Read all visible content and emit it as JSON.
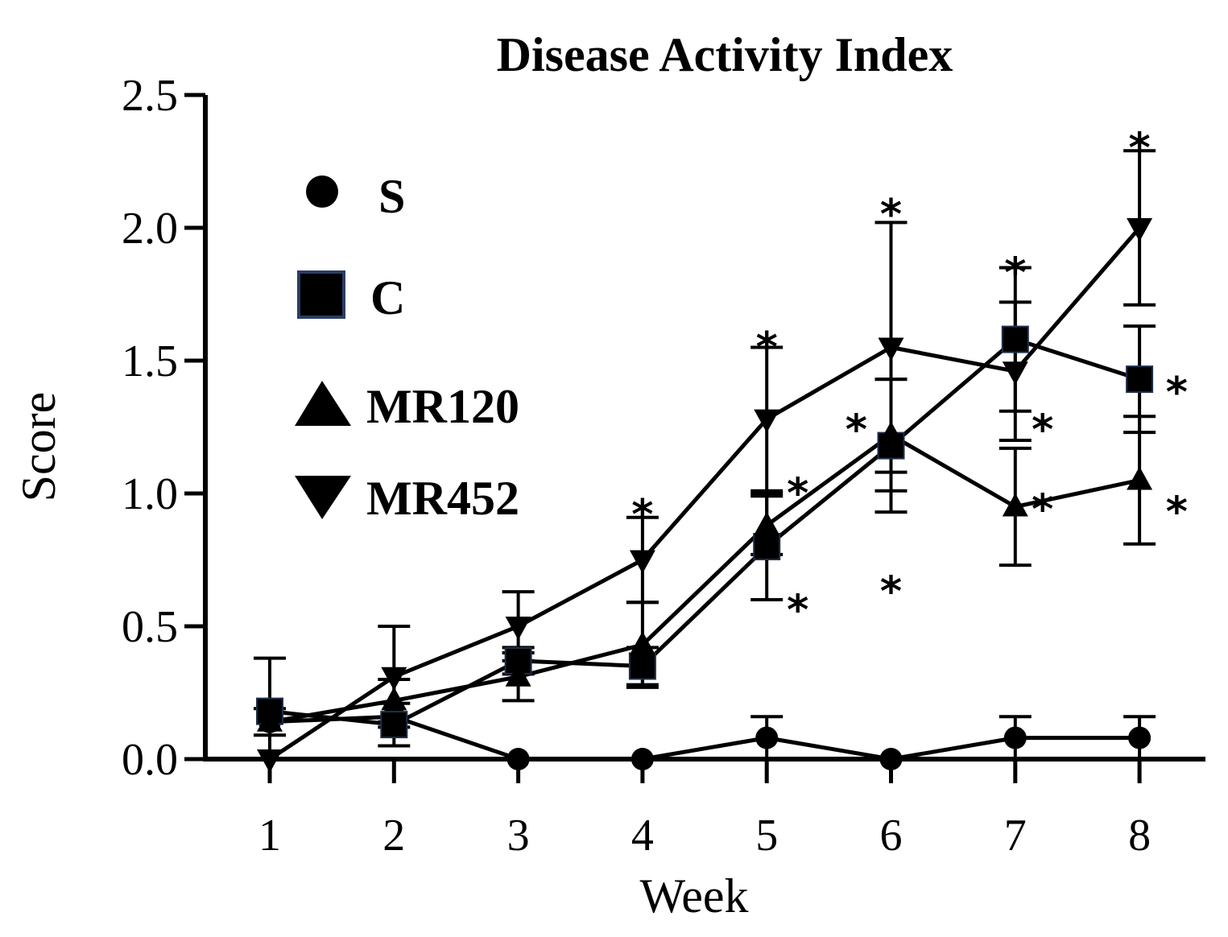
{
  "chart_data": {
    "type": "line",
    "title": "Disease Activity Index",
    "xlabel": "Week",
    "ylabel": "Score",
    "x": [
      1,
      2,
      3,
      4,
      5,
      6,
      7,
      8
    ],
    "xlim": [
      0.3,
      8.5
    ],
    "ylim": [
      0,
      2.5
    ],
    "yticks": [
      "0.0",
      "0.5",
      "1.0",
      "1.5",
      "2.0",
      "2.5"
    ],
    "xticks": [
      "1",
      "2",
      "3",
      "4",
      "5",
      "6",
      "7",
      "8"
    ],
    "legend_position": "top-left",
    "series": [
      {
        "name": "S",
        "marker": "circle",
        "values": [
          0.14,
          0.16,
          0.0,
          0.0,
          0.08,
          0.0,
          0.08,
          0.08
        ],
        "error": [
          0,
          0,
          0,
          0,
          0.08,
          0,
          0.08,
          0.08
        ]
      },
      {
        "name": "C",
        "marker": "square",
        "values": [
          0.18,
          0.13,
          0.37,
          0.35,
          0.8,
          1.18,
          1.58,
          1.43
        ],
        "error": [
          0.2,
          0.08,
          0.05,
          0.07,
          0.2,
          0.25,
          0.27,
          0.2
        ]
      },
      {
        "name": "MR120",
        "marker": "triangle-up",
        "values": [
          0.14,
          0.22,
          0.31,
          0.43,
          0.88,
          1.22,
          0.95,
          1.05
        ],
        "error": [
          0.05,
          0.08,
          0.09,
          0.16,
          0.11,
          0.21,
          0.22,
          0.24
        ]
      },
      {
        "name": "MR452",
        "marker": "triangle-down",
        "values": [
          0.0,
          0.31,
          0.5,
          0.75,
          1.28,
          1.55,
          1.46,
          2.0
        ],
        "error": [
          0,
          0.19,
          0.13,
          0.16,
          0.27,
          0.47,
          0.26,
          0.29
        ]
      }
    ],
    "annotations": [
      {
        "text": "*",
        "x": 4,
        "y": 0.97
      },
      {
        "text": "*",
        "x": 5,
        "y": 1.6
      },
      {
        "text": "*",
        "x": 5.25,
        "y": 1.05
      },
      {
        "text": "*",
        "x": 5.25,
        "y": 0.61
      },
      {
        "text": "*",
        "x": 6,
        "y": 2.1
      },
      {
        "text": "*",
        "x": 5.72,
        "y": 1.29
      },
      {
        "text": "*",
        "x": 6,
        "y": 0.68
      },
      {
        "text": "*",
        "x": 7,
        "y": 1.88
      },
      {
        "text": "*",
        "x": 7.22,
        "y": 1.29
      },
      {
        "text": "*",
        "x": 7.22,
        "y": 0.99
      },
      {
        "text": "*",
        "x": 8,
        "y": 2.35
      },
      {
        "text": "*",
        "x": 8.3,
        "y": 1.43
      },
      {
        "text": "*",
        "x": 8.3,
        "y": 0.98
      }
    ]
  }
}
